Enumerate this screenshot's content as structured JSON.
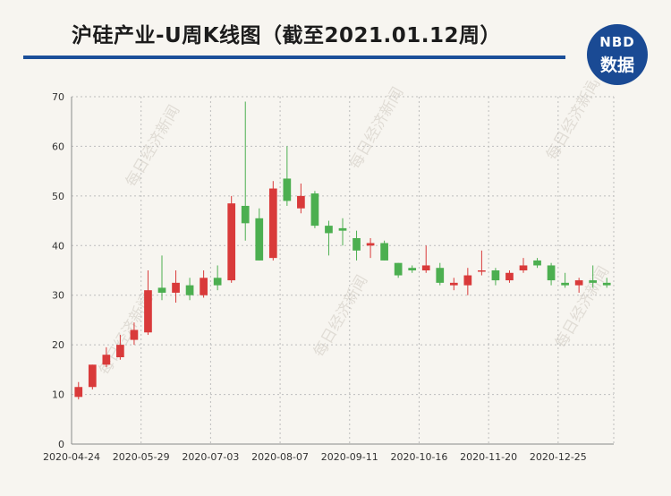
{
  "header": {
    "title": "沪硅产业-U周K线图（截至2021.01.12周）",
    "logo_top": "NBD",
    "logo_bottom": "数据"
  },
  "watermark": "每日经济新闻",
  "chart_data": {
    "type": "candlestick",
    "title": "沪硅产业-U周K线图（截至2021.01.12周）",
    "ylim": [
      0,
      70
    ],
    "y_ticks": [
      0,
      10,
      20,
      30,
      40,
      50,
      60,
      70
    ],
    "x_tick_labels": [
      "2020-04-24",
      "2020-05-29",
      "2020-07-03",
      "2020-08-07",
      "2020-09-11",
      "2020-10-16",
      "2020-11-20",
      "2020-12-25"
    ],
    "grid": true,
    "colors": {
      "up": "#d93a3a",
      "down": "#4caf50"
    },
    "candles": [
      {
        "x": "2020-04-24",
        "open": 9.5,
        "close": 11.5,
        "low": 9.0,
        "high": 12.5
      },
      {
        "x": "2020-05-01",
        "open": 11.5,
        "close": 16.0,
        "low": 11.0,
        "high": 16.0
      },
      {
        "x": "2020-05-08",
        "open": 16.0,
        "close": 18.0,
        "low": 15.5,
        "high": 19.5
      },
      {
        "x": "2020-05-15",
        "open": 17.5,
        "close": 20.0,
        "low": 17.0,
        "high": 22.0
      },
      {
        "x": "2020-05-22",
        "open": 21.0,
        "close": 23.0,
        "low": 20.0,
        "high": 24.5
      },
      {
        "x": "2020-05-29",
        "open": 22.5,
        "close": 31.0,
        "low": 22.0,
        "high": 35.0
      },
      {
        "x": "2020-06-05",
        "open": 31.5,
        "close": 30.5,
        "low": 29.0,
        "high": 38.0
      },
      {
        "x": "2020-06-12",
        "open": 30.5,
        "close": 32.5,
        "low": 28.5,
        "high": 35.0
      },
      {
        "x": "2020-06-19",
        "open": 32.0,
        "close": 30.0,
        "low": 29.0,
        "high": 33.5
      },
      {
        "x": "2020-06-26",
        "open": 30.0,
        "close": 33.5,
        "low": 29.5,
        "high": 35.0
      },
      {
        "x": "2020-07-03",
        "open": 33.5,
        "close": 32.0,
        "low": 31.0,
        "high": 36.0
      },
      {
        "x": "2020-07-10",
        "open": 33.0,
        "close": 48.5,
        "low": 32.5,
        "high": 50.0
      },
      {
        "x": "2020-07-17",
        "open": 48.0,
        "close": 44.5,
        "low": 41.0,
        "high": 69.0
      },
      {
        "x": "2020-07-24",
        "open": 45.5,
        "close": 37.0,
        "low": 37.0,
        "high": 47.5
      },
      {
        "x": "2020-07-31",
        "open": 37.5,
        "close": 51.5,
        "low": 37.0,
        "high": 53.0
      },
      {
        "x": "2020-08-07",
        "open": 53.5,
        "close": 49.0,
        "low": 48.0,
        "high": 60.0
      },
      {
        "x": "2020-08-14",
        "open": 47.5,
        "close": 50.0,
        "low": 46.5,
        "high": 52.5
      },
      {
        "x": "2020-08-21",
        "open": 50.5,
        "close": 44.0,
        "low": 43.5,
        "high": 51.0
      },
      {
        "x": "2020-08-28",
        "open": 44.0,
        "close": 42.5,
        "low": 38.0,
        "high": 45.0
      },
      {
        "x": "2020-09-04",
        "open": 43.5,
        "close": 43.0,
        "low": 40.0,
        "high": 45.5
      },
      {
        "x": "2020-09-11",
        "open": 41.5,
        "close": 39.0,
        "low": 37.0,
        "high": 43.0
      },
      {
        "x": "2020-09-18",
        "open": 40.0,
        "close": 40.5,
        "low": 37.5,
        "high": 41.5
      },
      {
        "x": "2020-09-25",
        "open": 40.5,
        "close": 37.0,
        "low": 37.0,
        "high": 41.0
      },
      {
        "x": "2020-10-02",
        "open": 36.5,
        "close": 34.0,
        "low": 33.5,
        "high": 36.5
      },
      {
        "x": "2020-10-09",
        "open": 35.5,
        "close": 35.0,
        "low": 34.5,
        "high": 36.0
      },
      {
        "x": "2020-10-16",
        "open": 35.0,
        "close": 36.0,
        "low": 34.5,
        "high": 40.0
      },
      {
        "x": "2020-10-23",
        "open": 35.5,
        "close": 32.5,
        "low": 32.0,
        "high": 36.5
      },
      {
        "x": "2020-10-30",
        "open": 32.0,
        "close": 32.5,
        "low": 31.0,
        "high": 33.5
      },
      {
        "x": "2020-11-06",
        "open": 32.0,
        "close": 34.0,
        "low": 30.0,
        "high": 35.5
      },
      {
        "x": "2020-11-13",
        "open": 35.0,
        "close": 35.0,
        "low": 34.0,
        "high": 39.0
      },
      {
        "x": "2020-11-20",
        "open": 35.0,
        "close": 33.0,
        "low": 32.0,
        "high": 35.5
      },
      {
        "x": "2020-11-27",
        "open": 33.0,
        "close": 34.5,
        "low": 32.5,
        "high": 35.0
      },
      {
        "x": "2020-12-04",
        "open": 35.0,
        "close": 36.0,
        "low": 34.5,
        "high": 37.5
      },
      {
        "x": "2020-12-11",
        "open": 37.0,
        "close": 36.0,
        "low": 35.5,
        "high": 37.5
      },
      {
        "x": "2020-12-18",
        "open": 36.0,
        "close": 33.0,
        "low": 32.0,
        "high": 36.5
      },
      {
        "x": "2020-12-25",
        "open": 32.5,
        "close": 32.0,
        "low": 31.5,
        "high": 34.5
      },
      {
        "x": "2021-01-01",
        "open": 32.0,
        "close": 33.0,
        "low": 30.5,
        "high": 33.5
      },
      {
        "x": "2021-01-08",
        "open": 33.0,
        "close": 32.5,
        "low": 31.5,
        "high": 36.0
      },
      {
        "x": "2021-01-12",
        "open": 32.5,
        "close": 32.0,
        "low": 31.5,
        "high": 33.5
      }
    ]
  }
}
